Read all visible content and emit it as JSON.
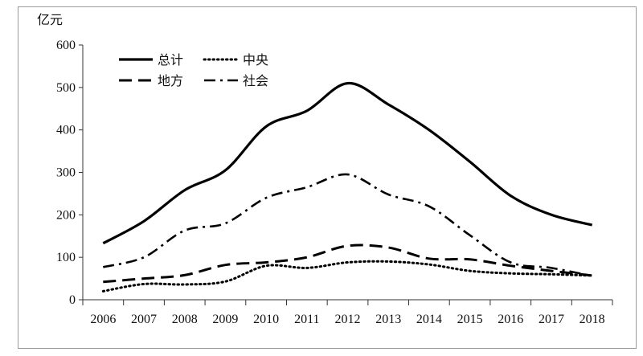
{
  "chart_data": {
    "type": "line",
    "title": "",
    "ylabel": "亿元",
    "xlabel": "",
    "x": [
      "2006",
      "2007",
      "2008",
      "2009",
      "2010",
      "2011",
      "2012",
      "2013",
      "2014",
      "2015",
      "2016",
      "2017",
      "2018"
    ],
    "ylim": [
      0,
      600
    ],
    "yticks": [
      0,
      100,
      200,
      300,
      400,
      500,
      600
    ],
    "grid": false,
    "legend_position": "top-left",
    "series": [
      {
        "name": "总计",
        "style": "solid",
        "color": "#000000",
        "values": [
          133,
          185,
          258,
          305,
          408,
          445,
          510,
          460,
          400,
          325,
          245,
          200,
          176
        ]
      },
      {
        "name": "中央",
        "style": "dotted",
        "color": "#000000",
        "values": [
          20,
          37,
          36,
          43,
          80,
          75,
          88,
          90,
          83,
          68,
          62,
          60,
          57
        ]
      },
      {
        "name": "地方",
        "style": "dashed",
        "color": "#000000",
        "values": [
          42,
          50,
          58,
          82,
          88,
          100,
          127,
          123,
          97,
          95,
          80,
          68,
          57
        ]
      },
      {
        "name": "社会",
        "style": "dash-dot",
        "color": "#000000",
        "values": [
          77,
          100,
          163,
          180,
          240,
          265,
          295,
          248,
          220,
          152,
          88,
          75,
          56
        ]
      }
    ]
  }
}
